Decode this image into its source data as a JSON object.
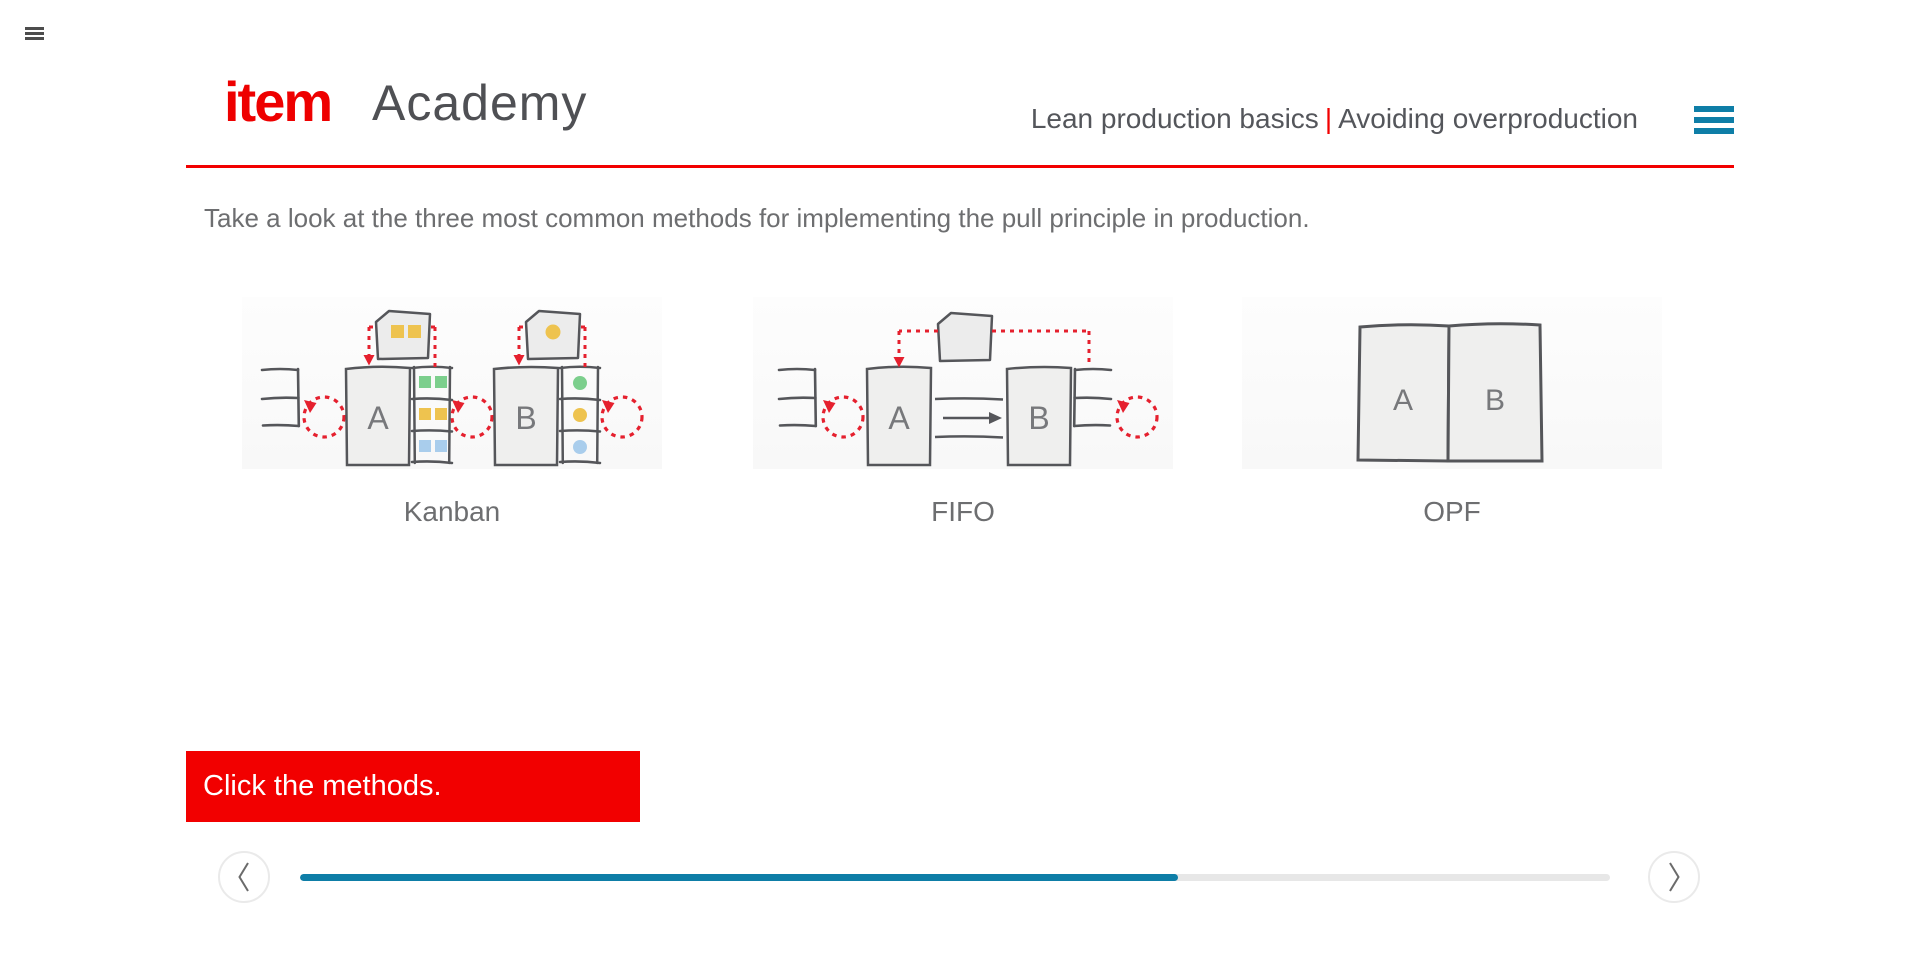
{
  "window": {
    "menu_icon": "hamburger"
  },
  "header": {
    "logo": {
      "primary": "item",
      "secondary": "Academy"
    },
    "title": {
      "course": "Lean production basics",
      "separator": "|",
      "lesson": "Avoiding overproduction"
    },
    "menu_icon": "hamburger"
  },
  "content": {
    "intro": "Take a look at the three most common methods for implementing the pull principle in production.",
    "prompt": "Click the methods.",
    "methods": [
      {
        "label": "Kanban",
        "stations": {
          "a": "A",
          "b": "B"
        }
      },
      {
        "label": "FIFO",
        "stations": {
          "a": "A",
          "b": "B"
        }
      },
      {
        "label": "OPF",
        "stations": {
          "a": "A",
          "b": "B"
        }
      }
    ]
  },
  "footer": {
    "progress_percent": 67,
    "prev_icon": "chevron-left",
    "next_icon": "chevron-right"
  },
  "colors": {
    "ui_red": "#f20000",
    "logo_red": "#ee0000",
    "teal": "#0e7ea7",
    "header_text": "#54565b",
    "body_text": "#6d6e70",
    "sketch_stroke": "#55565a",
    "sketch_fill": "#efefee",
    "sketch_red": "#e5202e",
    "kanban_green": "#7ccf8d",
    "kanban_yellow": "#eec34f",
    "kanban_blue": "#a9cdec",
    "progress_track": "#e7e7e7"
  }
}
